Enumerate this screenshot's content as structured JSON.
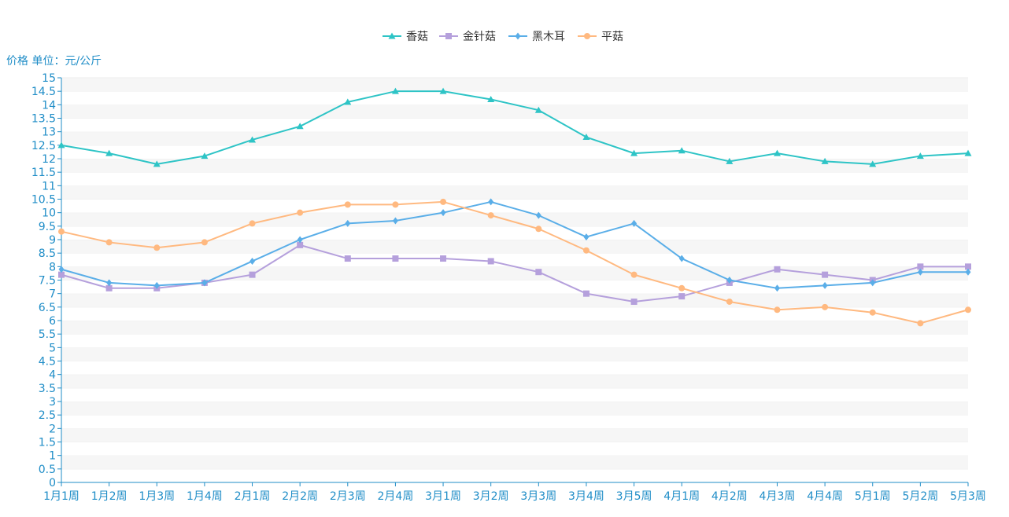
{
  "chart_data": {
    "type": "line",
    "ylabel": "价格 单位：元/公斤",
    "ylim": [
      0,
      15
    ],
    "ytick_step": 0.5,
    "grid": "horizontal-bands",
    "legend_position": "top-center",
    "categories": [
      "1月1周",
      "1月2周",
      "1月3周",
      "1月4周",
      "2月1周",
      "2月2周",
      "2月3周",
      "2月4周",
      "3月1周",
      "3月2周",
      "3月3周",
      "3月4周",
      "3月5周",
      "4月1周",
      "4月2周",
      "4月3周",
      "4月4周",
      "5月1周",
      "5月2周",
      "5月3周"
    ],
    "series": [
      {
        "name": "香菇",
        "color": "#2ec4c6",
        "marker": "triangle",
        "values": [
          12.5,
          12.2,
          11.8,
          12.1,
          12.7,
          13.2,
          14.1,
          14.5,
          14.5,
          14.2,
          13.8,
          12.8,
          12.2,
          12.3,
          11.9,
          12.2,
          11.9,
          11.8,
          12.1,
          12.2
        ]
      },
      {
        "name": "金针菇",
        "color": "#b5a0dc",
        "marker": "square",
        "values": [
          7.7,
          7.2,
          7.2,
          7.4,
          7.7,
          8.8,
          8.3,
          8.3,
          8.3,
          8.2,
          7.8,
          7.0,
          6.7,
          6.9,
          7.4,
          7.9,
          7.7,
          7.5,
          8.0,
          8.0
        ]
      },
      {
        "name": "黑木耳",
        "color": "#5aaee8",
        "marker": "diamond",
        "values": [
          7.9,
          7.4,
          7.3,
          7.4,
          8.2,
          9.0,
          9.6,
          9.7,
          10.0,
          10.4,
          9.9,
          9.1,
          9.6,
          8.3,
          7.5,
          7.2,
          7.3,
          7.4,
          7.8,
          7.8
        ]
      },
      {
        "name": "平菇",
        "color": "#ffb980",
        "marker": "circle",
        "values": [
          9.3,
          8.9,
          8.7,
          8.9,
          9.6,
          10.0,
          10.3,
          10.3,
          10.4,
          9.9,
          9.4,
          8.6,
          7.7,
          7.2,
          6.7,
          6.4,
          6.5,
          6.3,
          5.9,
          6.4
        ]
      }
    ]
  }
}
